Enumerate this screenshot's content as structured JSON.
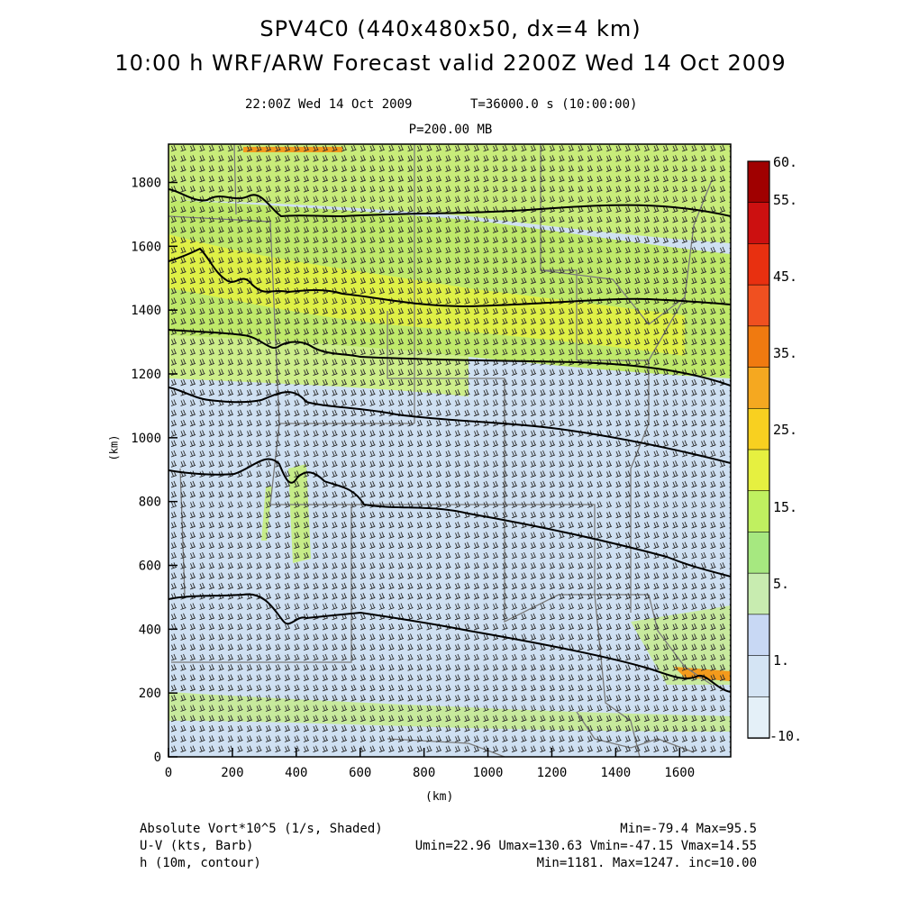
{
  "title": {
    "line1": "SPV4C0 (440x480x50, dx=4 km)",
    "line2": "10:00 h WRF/ARW Forecast valid 2200Z Wed 14 Oct 2009"
  },
  "subtitle": {
    "valid_time": "22:00Z Wed 14 Oct 2009",
    "model_time": "T=36000.0 s (10:00:00)",
    "level": "P=200.00 MB"
  },
  "axes": {
    "x_label": "(km)",
    "y_label": "(km)",
    "x_ticks": [
      "0",
      "200",
      "400",
      "600",
      "800",
      "1000",
      "1200",
      "1400",
      "1600"
    ],
    "y_ticks": [
      "0",
      "200",
      "400",
      "600",
      "800",
      "1000",
      "1200",
      "1400",
      "1600",
      "1800"
    ],
    "x_range": [
      0,
      1760
    ],
    "y_range": [
      0,
      1920
    ]
  },
  "colorbar": {
    "labels": [
      "60.",
      "55.",
      "45.",
      "35.",
      "25.",
      "15.",
      "5.",
      "1.",
      "-10."
    ],
    "colors": [
      "#a00000",
      "#cc1010",
      "#e83010",
      "#f05020",
      "#f07a10",
      "#f5a820",
      "#f8d020",
      "#e6f040",
      "#c0f060",
      "#a6e880",
      "#c8ecb0",
      "#c8d8f4",
      "#d4e4f4",
      "#e4f0f8"
    ]
  },
  "footer": {
    "field1_name": "Absolute Vort*10^5 (1/s, Shaded)",
    "field1_stats": "Min=-79.4 Max=95.5",
    "field2_name": "U-V (kts, Barb)",
    "field2_stats": "Umin=22.96 Umax=130.63 Vmin=-47.15 Vmax=14.55",
    "field3_name": "h (10m, contour)",
    "field3_stats": "Min=1181. Max=1247. inc=10.00"
  },
  "contour_heights_y_km": [
    1715,
    1560,
    1320,
    1050,
    820,
    580,
    240
  ],
  "colors": {
    "background_blue": "#cfe0f2",
    "green": "#c4ec6a",
    "yellow_green": "#e4f040",
    "orange": "#f39a1c",
    "contour": "#000000",
    "barb": "#2a2a2a",
    "border": "#7a7a7a"
  }
}
